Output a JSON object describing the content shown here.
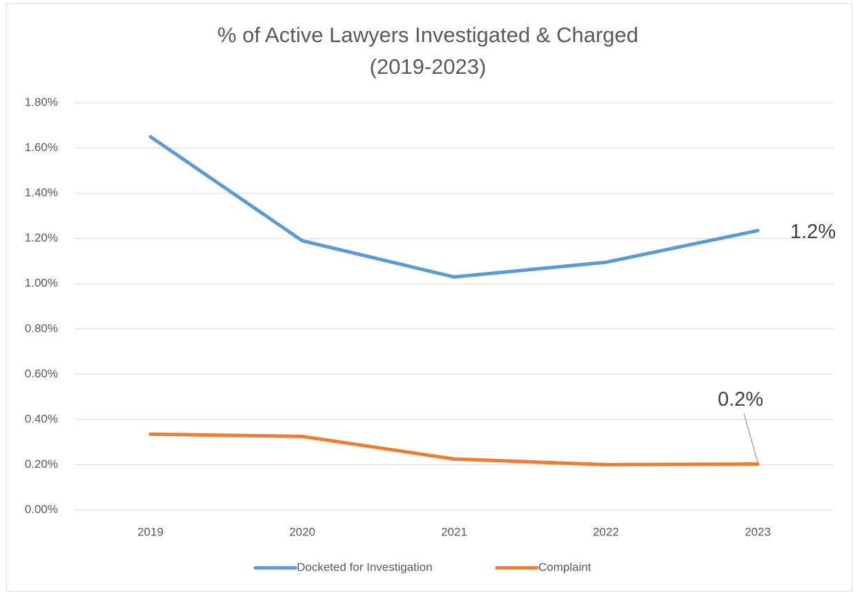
{
  "chart_data": {
    "type": "line",
    "title": [
      "% of Active Lawyers Investigated & Charged",
      "(2019-2023)"
    ],
    "categories": [
      "2019",
      "2020",
      "2021",
      "2022",
      "2023"
    ],
    "series": [
      {
        "name": "Docketed for Investigation",
        "color": "#5b9bd5",
        "values": [
          1.65,
          1.19,
          1.03,
          1.095,
          1.235
        ],
        "value_labels": [
          null,
          null,
          null,
          null,
          "1.2%"
        ]
      },
      {
        "name": "Complaint",
        "color": "#ed7d31",
        "values": [
          0.335,
          0.325,
          0.225,
          0.2,
          0.203
        ],
        "value_labels": [
          null,
          null,
          null,
          null,
          "0.2%"
        ]
      }
    ],
    "ylim": [
      0,
      1.8
    ],
    "yticks": [
      {
        "value": 0,
        "label": "0.00%"
      },
      {
        "value": 0.2,
        "label": "0.20%"
      },
      {
        "value": 0.4,
        "label": "0.40%"
      },
      {
        "value": 0.6,
        "label": "0.60%"
      },
      {
        "value": 0.8,
        "label": "0.80%"
      },
      {
        "value": 1.0,
        "label": "1.00%"
      },
      {
        "value": 1.2,
        "label": "1.20%"
      },
      {
        "value": 1.4,
        "label": "1.40%"
      },
      {
        "value": 1.6,
        "label": "1.60%"
      },
      {
        "value": 1.8,
        "label": "1.80%"
      }
    ],
    "grid": true,
    "legend": "bottom"
  }
}
